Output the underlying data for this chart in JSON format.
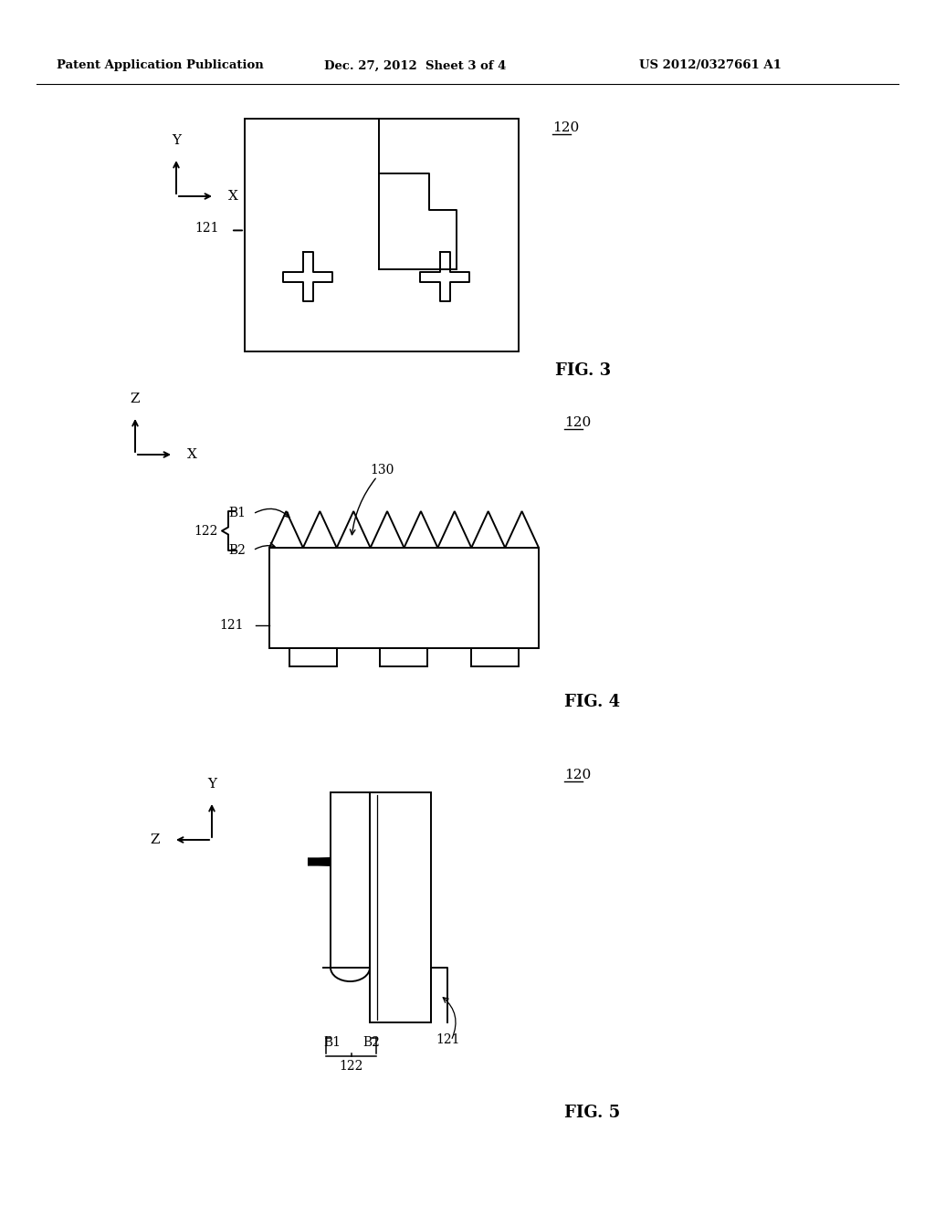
{
  "bg_color": "#ffffff",
  "line_color": "#000000",
  "header_left": "Patent Application Publication",
  "header_center": "Dec. 27, 2012  Sheet 3 of 4",
  "header_right": "US 2012/0327661 A1"
}
